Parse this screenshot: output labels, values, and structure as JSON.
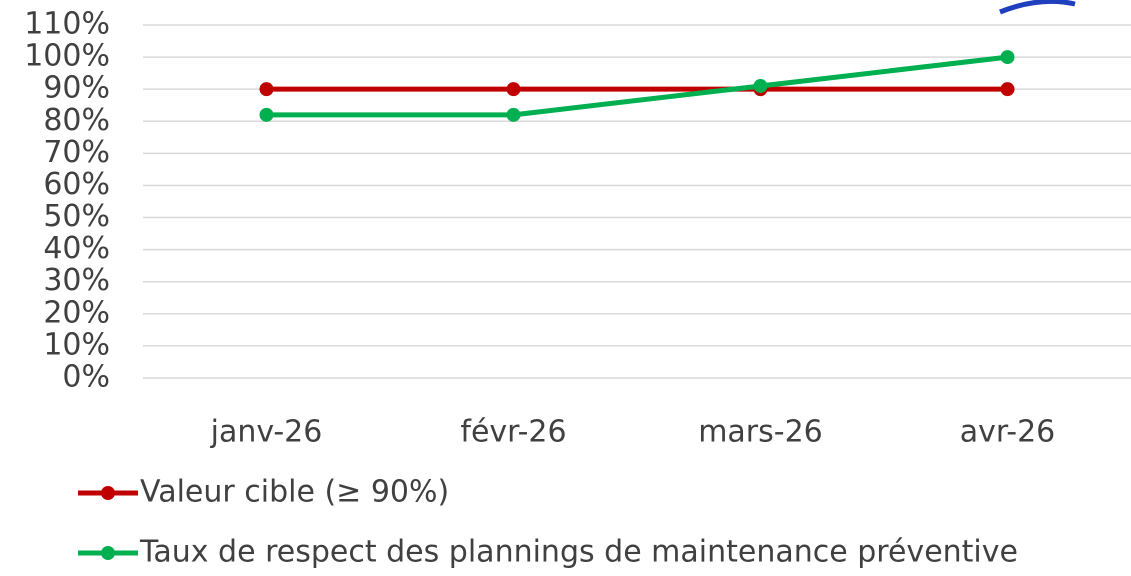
{
  "chart_data": {
    "type": "line",
    "categories": [
      "janv-26",
      "févr-26",
      "mars-26",
      "avr-26"
    ],
    "series": [
      {
        "name": "Valeur cible (≥ 90%)",
        "color": "#c00000",
        "values": [
          90,
          90,
          90,
          90
        ]
      },
      {
        "name": "Taux de respect des plannings de maintenance préventive",
        "color": "#00b050",
        "values": [
          82,
          82,
          91,
          100
        ]
      }
    ],
    "ylim": [
      0,
      110
    ],
    "yticks": [
      {
        "value": 0,
        "label": "0%"
      },
      {
        "value": 10,
        "label": "10%"
      },
      {
        "value": 20,
        "label": "20%"
      },
      {
        "value": 30,
        "label": "30%"
      },
      {
        "value": 40,
        "label": "40%"
      },
      {
        "value": 50,
        "label": "50%"
      },
      {
        "value": 60,
        "label": "60%"
      },
      {
        "value": 70,
        "label": "70%"
      },
      {
        "value": 80,
        "label": "80%"
      },
      {
        "value": 90,
        "label": "90%"
      },
      {
        "value": 100,
        "label": "100%"
      },
      {
        "value": 110,
        "label": "110%"
      }
    ],
    "grid": true,
    "legend": "bottom"
  }
}
